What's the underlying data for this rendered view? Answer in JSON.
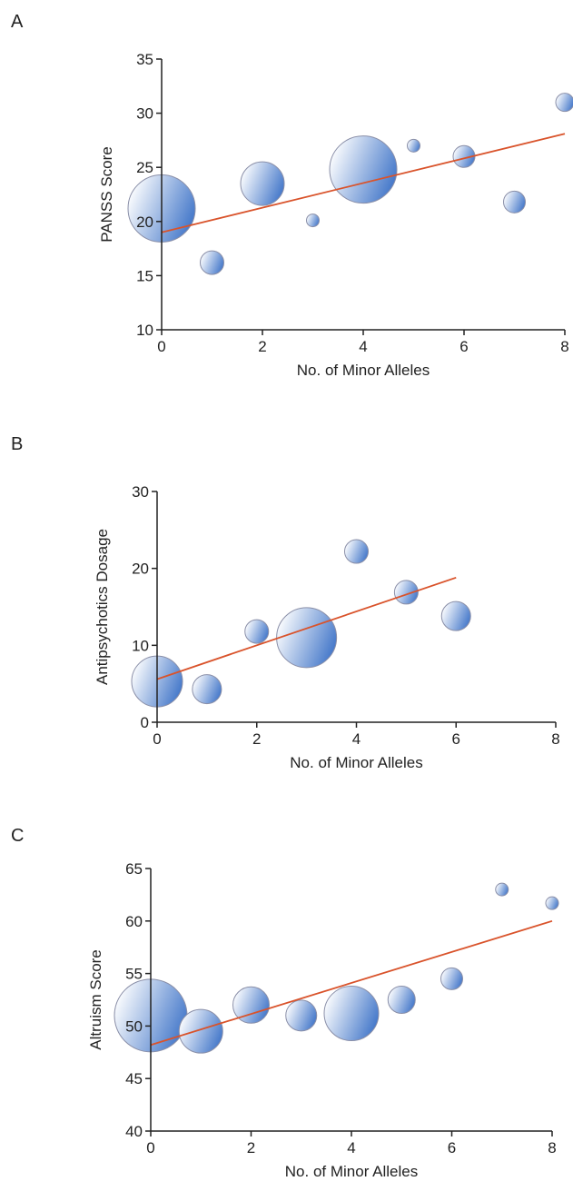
{
  "chart_data": [
    {
      "type": "bubble",
      "panel": "A",
      "x_label": "No. of Minor Alleles",
      "y_label": "PANSS Score",
      "x": [
        0,
        1,
        2,
        3,
        4,
        5,
        6,
        7,
        8
      ],
      "y": [
        21.2,
        16.2,
        23.5,
        20.1,
        24.8,
        27,
        26,
        21.8,
        31
      ],
      "sizes": [
        37,
        13,
        24,
        7,
        37,
        7,
        12,
        12,
        10
      ],
      "xlim": [
        0,
        8
      ],
      "xticks": [
        0,
        2,
        4,
        6,
        8
      ],
      "ylim": [
        10,
        35
      ],
      "yticks": [
        10,
        15,
        20,
        25,
        30,
        35
      ],
      "color": "#3f74c8",
      "trendline": {
        "x": [
          0,
          8
        ],
        "y": [
          19,
          28.1
        ],
        "color": "#d9532b"
      }
    },
    {
      "type": "bubble",
      "panel": "B",
      "x_label": "No. of Minor Alleles",
      "y_label": "Antipsychotics Dosage",
      "x": [
        0,
        1,
        2,
        3,
        4,
        5,
        6
      ],
      "y": [
        5.3,
        4.3,
        11.8,
        11,
        22.2,
        16.9,
        13.8
      ],
      "sizes": [
        28,
        16,
        13,
        33,
        13,
        13,
        16
      ],
      "xlim": [
        0,
        8
      ],
      "xticks": [
        0,
        2,
        4,
        6,
        8
      ],
      "ylim": [
        0,
        30
      ],
      "yticks": [
        0,
        10,
        20,
        30
      ],
      "color": "#3f74c8",
      "trendline": {
        "x": [
          0,
          6
        ],
        "y": [
          5.6,
          18.8
        ],
        "color": "#d9532b"
      }
    },
    {
      "type": "bubble",
      "panel": "C",
      "x_label": "No. of Minor Alleles",
      "y_label": "Altruism Score",
      "x": [
        0,
        1,
        2,
        3,
        4,
        5,
        6,
        7,
        8
      ],
      "y": [
        51,
        49.5,
        52,
        51,
        51.2,
        52.5,
        54.5,
        63,
        61.7
      ],
      "sizes": [
        40,
        24,
        20,
        17,
        30,
        15,
        12,
        7,
        7
      ],
      "xlim": [
        0,
        8
      ],
      "xticks": [
        0,
        2,
        4,
        6,
        8
      ],
      "ylim": [
        40,
        65
      ],
      "yticks": [
        40,
        45,
        50,
        55,
        60,
        65
      ],
      "color": "#3f74c8",
      "trendline": {
        "x": [
          0,
          8
        ],
        "y": [
          48.2,
          60
        ],
        "color": "#d9532b"
      }
    }
  ]
}
